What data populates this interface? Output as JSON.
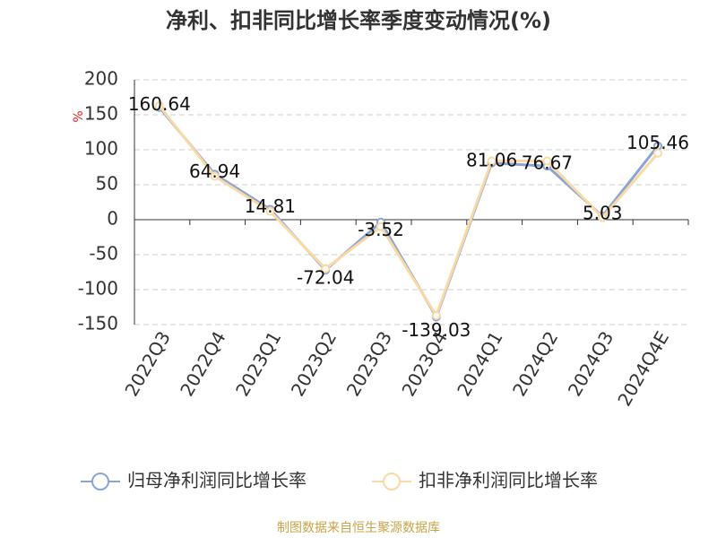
{
  "chart_data": {
    "type": "line",
    "title": "净利、扣非同比增长率季度变动情况(%)",
    "y_unit": "%",
    "categories": [
      "2022Q3",
      "2022Q4",
      "2023Q1",
      "2023Q2",
      "2023Q3",
      "2023Q4",
      "2024Q1",
      "2024Q2",
      "2024Q3",
      "2024Q4E"
    ],
    "series": [
      {
        "name": "归母净利润同比增长率",
        "color": "#8aa4d6",
        "values": [
          160.64,
          64.94,
          14.81,
          -72.04,
          -3.52,
          -139.03,
          81.06,
          76.67,
          5.03,
          105.46
        ]
      },
      {
        "name": "扣非净利润同比增长率",
        "color": "#fbd9a4",
        "values": [
          163,
          62,
          12,
          -70,
          -10,
          -137,
          84,
          84,
          3,
          95
        ]
      }
    ],
    "ylim": [
      -150,
      200
    ],
    "yticks": [
      -150,
      -100,
      -50,
      0,
      50,
      100,
      150,
      200
    ],
    "grid": true,
    "source": "制图数据来自恒生聚源数据库"
  }
}
